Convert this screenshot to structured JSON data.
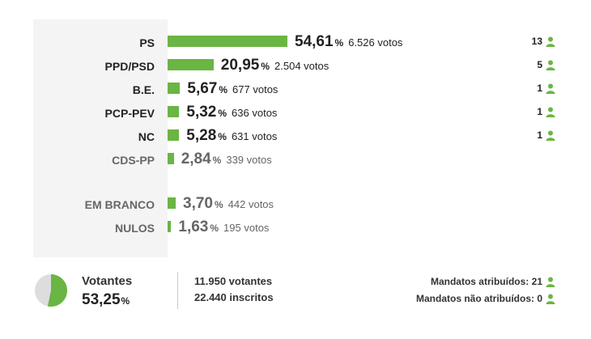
{
  "results": [
    {
      "party": "PS",
      "percent": "54,61",
      "votes": "6.526 votos",
      "mandates": "13",
      "share": 54.61,
      "dim": false
    },
    {
      "party": "PPD/PSD",
      "percent": "20,95",
      "votes": "2.504 votos",
      "mandates": "5",
      "share": 20.95,
      "dim": false
    },
    {
      "party": "B.E.",
      "percent": "5,67",
      "votes": "677 votos",
      "mandates": "1",
      "share": 5.67,
      "dim": false
    },
    {
      "party": "PCP-PEV",
      "percent": "5,32",
      "votes": "636 votos",
      "mandates": "1",
      "share": 5.32,
      "dim": false
    },
    {
      "party": "NC",
      "percent": "5,28",
      "votes": "631 votos",
      "mandates": "1",
      "share": 5.28,
      "dim": false
    },
    {
      "party": "CDS-PP",
      "percent": "2,84",
      "votes": "339 votos",
      "mandates": "",
      "share": 2.84,
      "dim": true
    }
  ],
  "other": [
    {
      "party": "EM BRANCO",
      "percent": "3,70",
      "votes": "442 votos",
      "share": 3.7
    },
    {
      "party": "NULOS",
      "percent": "1,63",
      "votes": "195 votos",
      "share": 1.63
    }
  ],
  "percent_symbol": "%",
  "turnout": {
    "label": "Votantes",
    "percent": "53,25",
    "share": 53.25,
    "voters": "11.950 votantes",
    "registered": "22.440 inscritos"
  },
  "mandates_summary": {
    "assigned": "Mandatos atribuídos: 21",
    "unassigned": "Mandatos não atribuídos: 0"
  },
  "colors": {
    "accent": "#6ab544",
    "pie_rest": "#dddddd"
  },
  "icons": {
    "mandate": "person-icon"
  }
}
